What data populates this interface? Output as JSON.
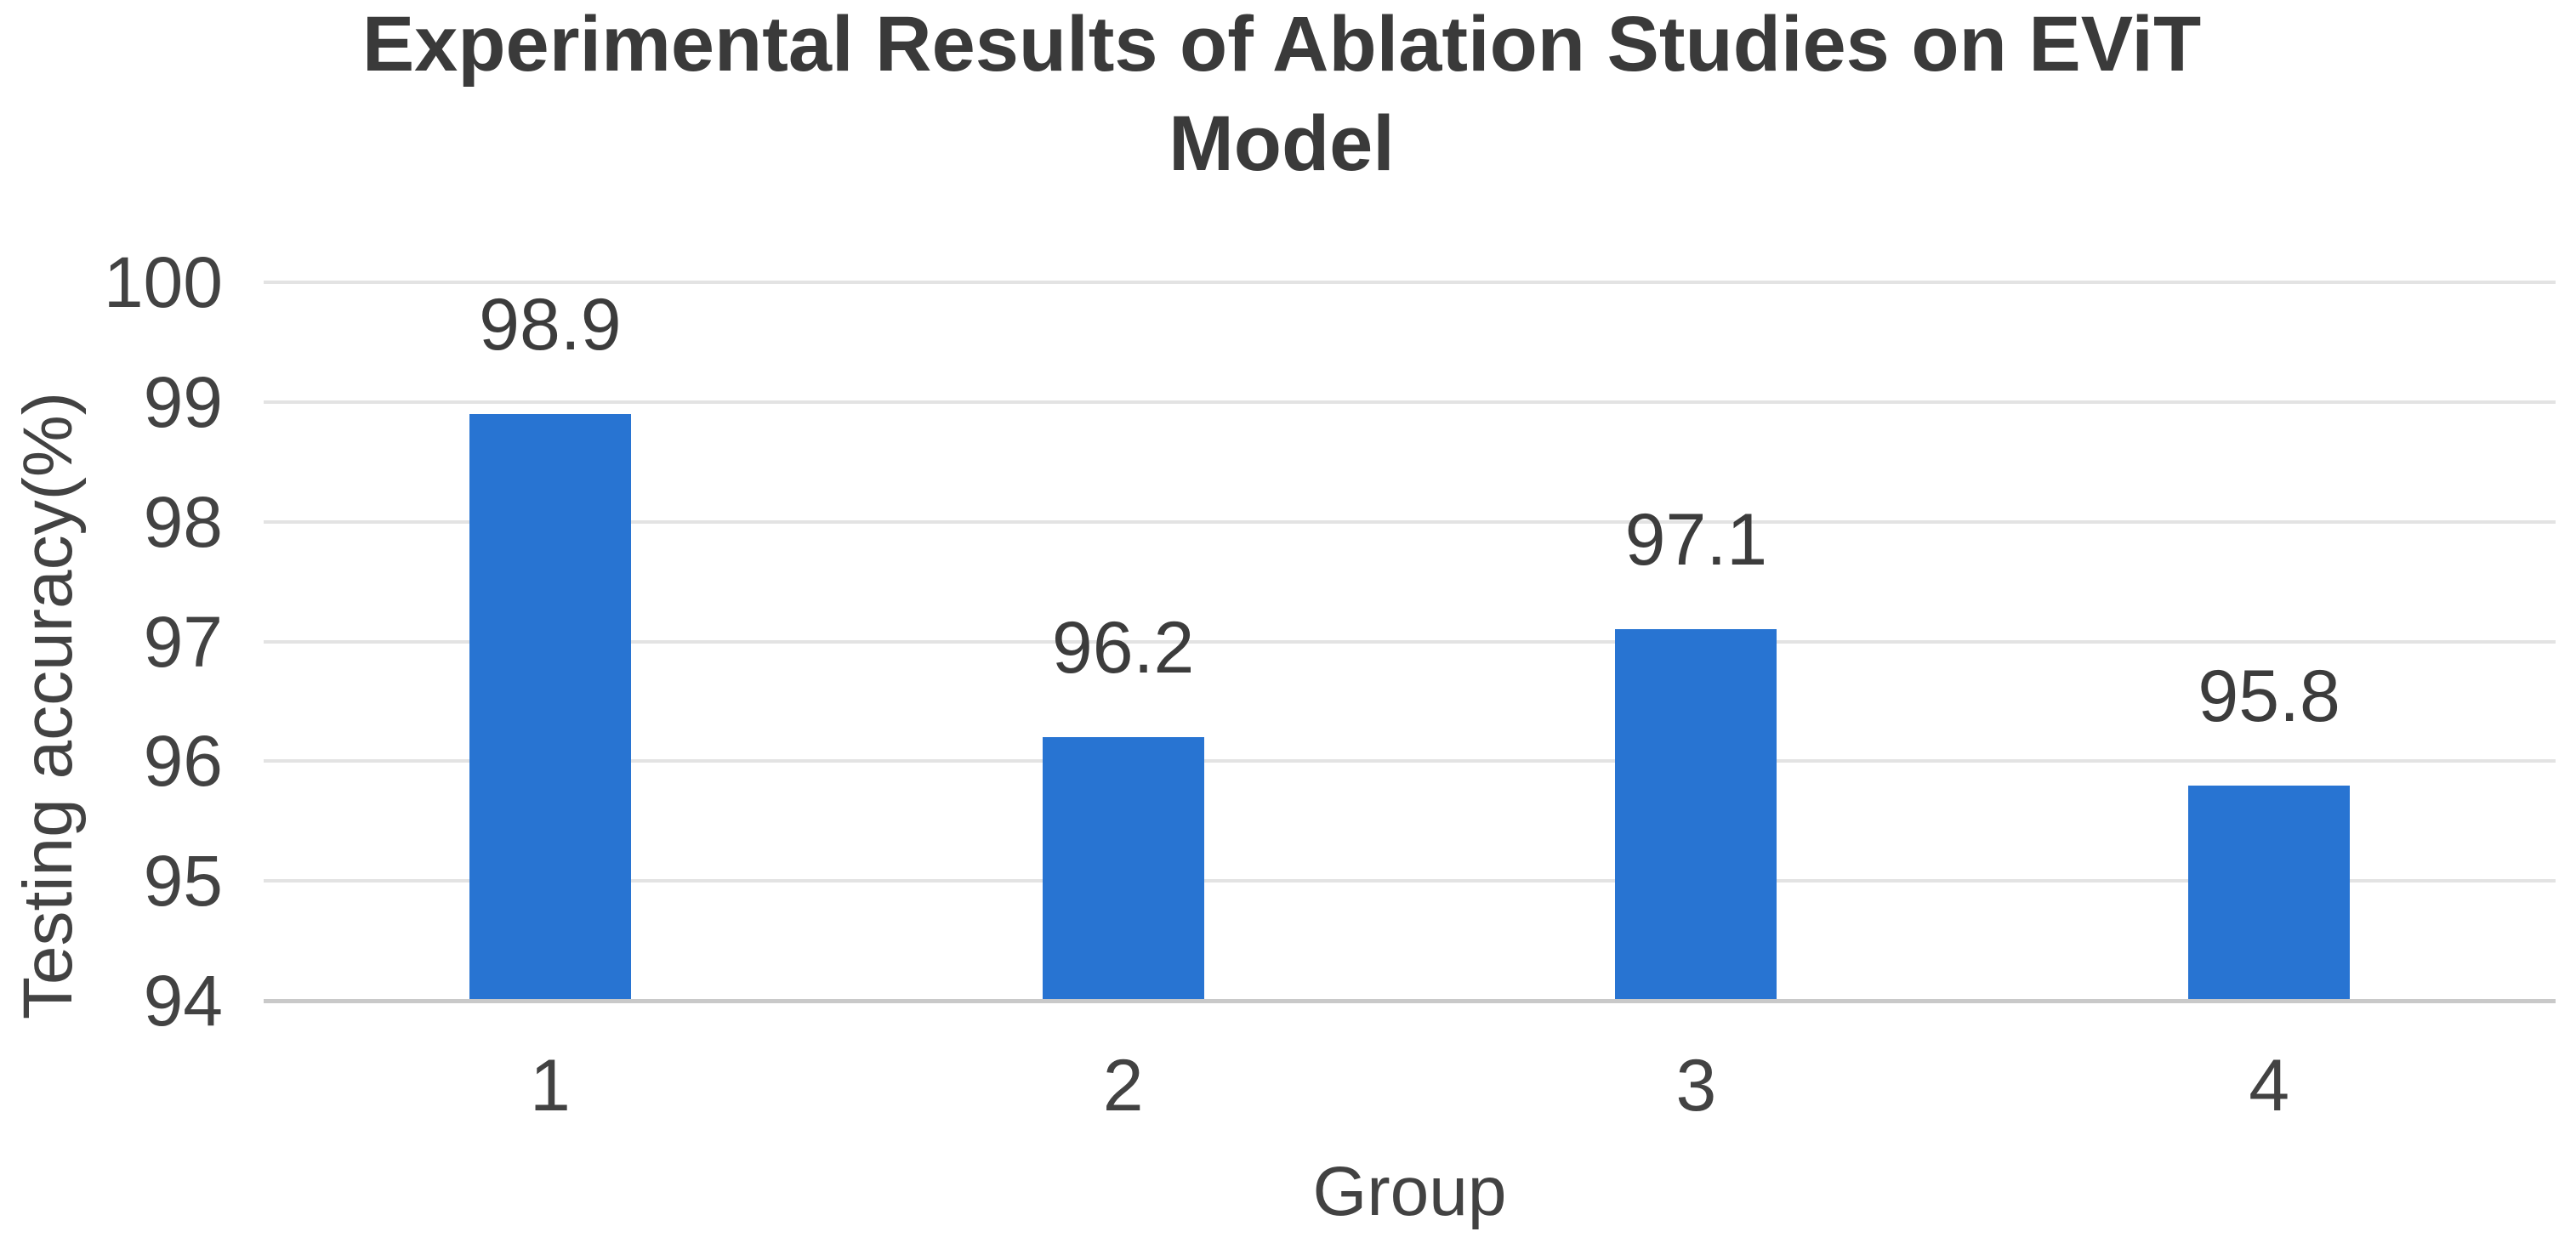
{
  "chart_data": {
    "type": "bar",
    "title": "Experimental Results of Ablation Studies on EViT\nModel",
    "x_axis_label": "Group",
    "y_axis_label": "Testing accuracy(%)",
    "categories": [
      "1",
      "2",
      "3",
      "4"
    ],
    "values": [
      98.9,
      96.2,
      97.1,
      95.8
    ],
    "bar_labels": [
      "98.9",
      "96.2",
      "97.1",
      "95.8"
    ],
    "y_ticks": [
      "100",
      "99",
      "98",
      "97",
      "96",
      "95",
      "94"
    ],
    "ylim": [
      94,
      100
    ],
    "grid": "horizontal",
    "legend": "none",
    "colors": {
      "bar": "#2874d2",
      "gridline": "#e3e3e3",
      "axis_line": "#c9c9c9",
      "text": "#424242",
      "title": "#3a3a3a",
      "background": "#ffffff"
    }
  }
}
